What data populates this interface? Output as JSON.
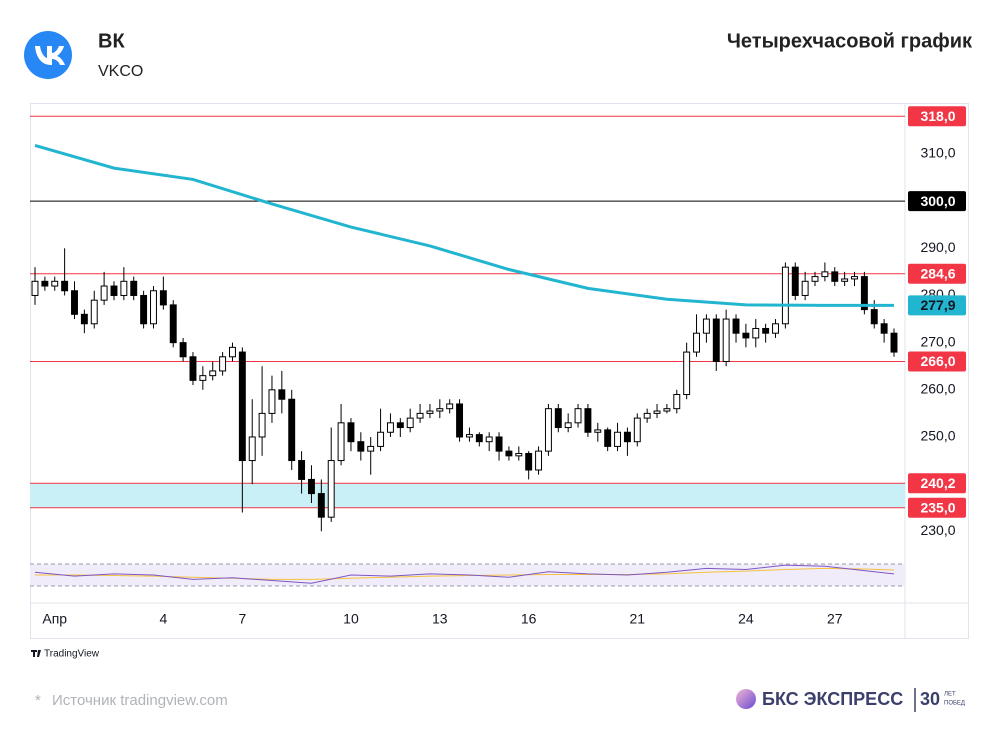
{
  "header": {
    "ticker_name": "ВК",
    "ticker": "VKCO",
    "title": "Четырехчасовой график"
  },
  "chart_data": {
    "type": "candlestick",
    "categories": [
      null,
      null,
      "Апр",
      null,
      null,
      null,
      null,
      null,
      null,
      null,
      null,
      null,
      null,
      "4",
      null,
      null,
      null,
      null,
      null,
      null,
      null,
      "7",
      null,
      null,
      null,
      null,
      null,
      null,
      null,
      null,
      null,
      null,
      "10",
      null,
      null,
      null,
      null,
      null,
      null,
      null,
      null,
      "13",
      null,
      null,
      null,
      null,
      null,
      null,
      null,
      null,
      "16",
      null,
      null,
      null,
      null,
      null,
      null,
      null,
      null,
      null,
      null,
      "21",
      null,
      null,
      null,
      null,
      null,
      null,
      null,
      null,
      null,
      null,
      "24",
      null,
      null,
      null,
      null,
      null,
      null,
      null,
      null,
      "27",
      null,
      null,
      null,
      null,
      null,
      null
    ],
    "open": [
      280,
      283,
      282,
      283,
      281,
      276,
      274,
      279,
      282,
      280,
      283,
      280,
      274,
      281,
      278,
      270,
      267,
      262,
      263,
      264,
      267,
      268,
      245,
      250,
      255,
      260,
      258,
      245,
      241,
      238,
      233,
      245,
      253,
      249,
      247,
      248,
      251,
      253,
      252,
      254,
      255,
      255.5,
      256,
      257,
      250,
      250.5,
      249,
      250,
      247,
      246,
      246.5,
      243,
      247,
      256,
      252,
      253,
      256,
      251,
      251.5,
      248,
      251,
      249,
      254,
      255,
      255.5,
      256,
      259,
      268,
      272,
      275,
      266,
      275,
      272,
      271,
      273,
      272,
      274,
      286,
      280,
      283,
      284,
      285,
      283,
      283.5,
      284,
      277,
      274,
      272
    ],
    "close": [
      283,
      282,
      283,
      281,
      276,
      274,
      279,
      282,
      280,
      283,
      280,
      274,
      281,
      278,
      270,
      267,
      262,
      263,
      264,
      267,
      269,
      245,
      250,
      255,
      260,
      258,
      245,
      241,
      238,
      233,
      245,
      253,
      249,
      247,
      248,
      251,
      253,
      252,
      254,
      255,
      255.5,
      256,
      257,
      250,
      250.5,
      249,
      250,
      247,
      246,
      246.5,
      243,
      247,
      256,
      252,
      253,
      256,
      251,
      251.5,
      248,
      251,
      249,
      254,
      255,
      255.5,
      256,
      259,
      268,
      272,
      275,
      266,
      275,
      272,
      271,
      273,
      272,
      274,
      286,
      280,
      283,
      284,
      285,
      283,
      283.5,
      284,
      277,
      274,
      272,
      268
    ],
    "high": [
      286,
      284,
      284,
      290,
      283,
      277,
      281,
      285,
      283,
      286,
      284,
      281,
      282,
      284,
      279,
      271,
      268,
      265,
      266,
      268,
      270,
      269,
      258,
      265,
      263,
      264,
      260,
      247,
      244,
      241,
      252,
      257,
      254,
      251,
      250,
      256,
      255,
      254,
      256,
      257,
      257,
      258,
      258,
      258,
      252,
      251,
      251,
      251,
      248,
      248,
      247,
      248,
      257,
      257,
      255,
      257,
      257,
      253,
      252,
      253,
      252,
      255,
      256,
      257,
      257,
      260,
      270,
      276,
      276,
      276,
      277,
      276,
      274,
      275,
      274,
      275,
      287,
      287,
      285,
      285,
      287,
      286,
      285,
      285,
      285,
      279,
      275,
      273
    ],
    "low": [
      278,
      281,
      281,
      280,
      275,
      272,
      273,
      278,
      279,
      279,
      279,
      273,
      273,
      277,
      269,
      266,
      261,
      260,
      262,
      263,
      266,
      234,
      240,
      246,
      253,
      255,
      243,
      238,
      236,
      230,
      232,
      244,
      247,
      245,
      242,
      247,
      250,
      250,
      251,
      253,
      254,
      254,
      255,
      249,
      249,
      248,
      247,
      245,
      245,
      245,
      241,
      242,
      246,
      251,
      251,
      252,
      250,
      249,
      247,
      247,
      246,
      248,
      253,
      254,
      255,
      255,
      258,
      267,
      270,
      264,
      265,
      270,
      269,
      269,
      270,
      271,
      273,
      279,
      279,
      282,
      283,
      282,
      282,
      282,
      276,
      273,
      270,
      267
    ],
    "up_color": "#ffffff",
    "down_color": "#000000",
    "wick_color": "#000000",
    "ylim": [
      227.1,
      320.8
    ],
    "yticks": [
      {
        "value": 310,
        "label": "310,0"
      },
      {
        "value": 290,
        "label": "290,0"
      },
      {
        "value": 280,
        "label": "280,0"
      },
      {
        "value": 270,
        "label": "270,0"
      },
      {
        "value": 260,
        "label": "260,0"
      },
      {
        "value": 250,
        "label": "250,0"
      },
      {
        "value": 230,
        "label": "230,0"
      }
    ],
    "levels": [
      {
        "value": 318,
        "label": "318,0",
        "color": "#f23645"
      },
      {
        "value": 300,
        "label": "300,0",
        "color": "#000000"
      },
      {
        "value": 284.6,
        "label": "284,6",
        "color": "#f23645"
      },
      {
        "value": 266,
        "label": "266,0",
        "color": "#f23645"
      },
      {
        "value": 240.2,
        "label": "240,2",
        "color": "#f23645"
      },
      {
        "value": 235,
        "label": "235,0",
        "color": "#f23645"
      }
    ],
    "zone_color": "#c9f0f6",
    "ma": {
      "color": "#22b5d0",
      "x": [
        0,
        8,
        16,
        24,
        32,
        40,
        48,
        56,
        64,
        72,
        80,
        87
      ],
      "values": [
        311.8,
        307,
        304.6,
        299.4,
        294.5,
        290.5,
        285.5,
        281.5,
        279.2,
        278,
        277.9,
        277.9
      ],
      "last": {
        "value": 277.9,
        "label": "277,9"
      }
    },
    "rsi": {
      "ylim": [
        10,
        90
      ],
      "levels": [
        70,
        30
      ],
      "color": "#7e57c2",
      "signal_color": "#f5c242",
      "x": [
        0,
        4,
        8,
        12,
        16,
        20,
        24,
        28,
        32,
        36,
        40,
        44,
        48,
        52,
        56,
        60,
        64,
        68,
        72,
        76,
        80,
        84,
        87
      ],
      "values": [
        55,
        48,
        52,
        50,
        42,
        45,
        40,
        35,
        50,
        48,
        52,
        50,
        46,
        56,
        52,
        50,
        55,
        62,
        60,
        68,
        66,
        58,
        52
      ],
      "signal": [
        50,
        50,
        49,
        48,
        46,
        44,
        42,
        42,
        44,
        46,
        48,
        49,
        50,
        51,
        51,
        51,
        52,
        55,
        57,
        60,
        62,
        61,
        59
      ]
    }
  },
  "footer": {
    "source_mark": "*",
    "source": "Источник tradingview.com",
    "platform": "TradingView",
    "brand": "БКС ЭКСПРЕСС",
    "anniversary": "30",
    "anniversary_top": "ЛЕТ",
    "anniversary_bottom": "ПОБЕД"
  }
}
